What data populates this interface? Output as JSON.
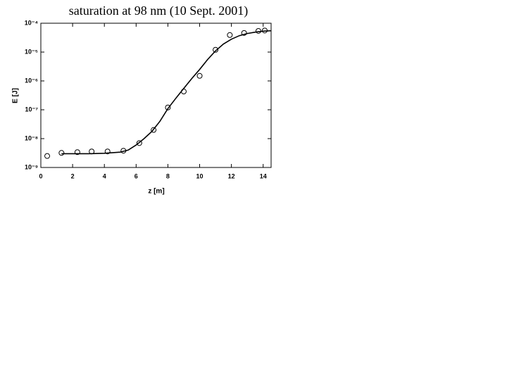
{
  "chart_data": {
    "type": "scatter",
    "title": "saturation at 98 nm (10 Sept. 2001)",
    "x_label": "z  [m]",
    "y_label": "E  [J]",
    "log_y": true,
    "xlim": [
      0,
      14.5
    ],
    "xticks": [
      0,
      2,
      4,
      6,
      8,
      10,
      12,
      14
    ],
    "ylim": [
      1e-09,
      0.0001
    ],
    "yticks": [
      {
        "value": 1e-09,
        "label": "10⁻⁹"
      },
      {
        "value": 1e-08,
        "label": "10⁻⁸"
      },
      {
        "value": 1e-07,
        "label": "10⁻⁷"
      },
      {
        "value": 1e-06,
        "label": "10⁻⁶"
      },
      {
        "value": 1e-05,
        "label": "10⁻⁵"
      },
      {
        "value": 0.0001,
        "label": "10⁻⁴"
      }
    ],
    "series": [
      {
        "style": "markers",
        "color": "#000000",
        "x": [
          0.4,
          1.3,
          2.3,
          3.2,
          4.2,
          5.2,
          6.2,
          7.1,
          8.0,
          9.0,
          10.0,
          11.0,
          11.9,
          12.8,
          13.7,
          14.1
        ],
        "values": [
          2.5e-09,
          3.2e-09,
          3.4e-09,
          3.6e-09,
          3.6e-09,
          3.8e-09,
          7e-09,
          2e-08,
          1.2e-07,
          4.3e-07,
          1.5e-06,
          1.2e-05,
          3.9e-05,
          4.6e-05,
          5.4e-05,
          5.6e-05
        ]
      },
      {
        "style": "line",
        "color": "#000000",
        "x": [
          1.3,
          2,
          3,
          4,
          5,
          5.5,
          6,
          6.5,
          7,
          7.5,
          8,
          8.5,
          9,
          9.5,
          10,
          10.5,
          11,
          11.5,
          12,
          12.5,
          13,
          13.5,
          14,
          14.5
        ],
        "values": [
          3e-09,
          3e-09,
          3e-09,
          3.1e-09,
          3.4e-09,
          4e-09,
          6e-09,
          1e-08,
          1.8e-08,
          4e-08,
          1.1e-07,
          2.5e-07,
          5.5e-07,
          1.2e-06,
          2.5e-06,
          5.5e-06,
          1.1e-05,
          1.9e-05,
          2.8e-05,
          3.7e-05,
          4.4e-05,
          4.9e-05,
          5.3e-05,
          5.5e-05
        ]
      }
    ]
  }
}
